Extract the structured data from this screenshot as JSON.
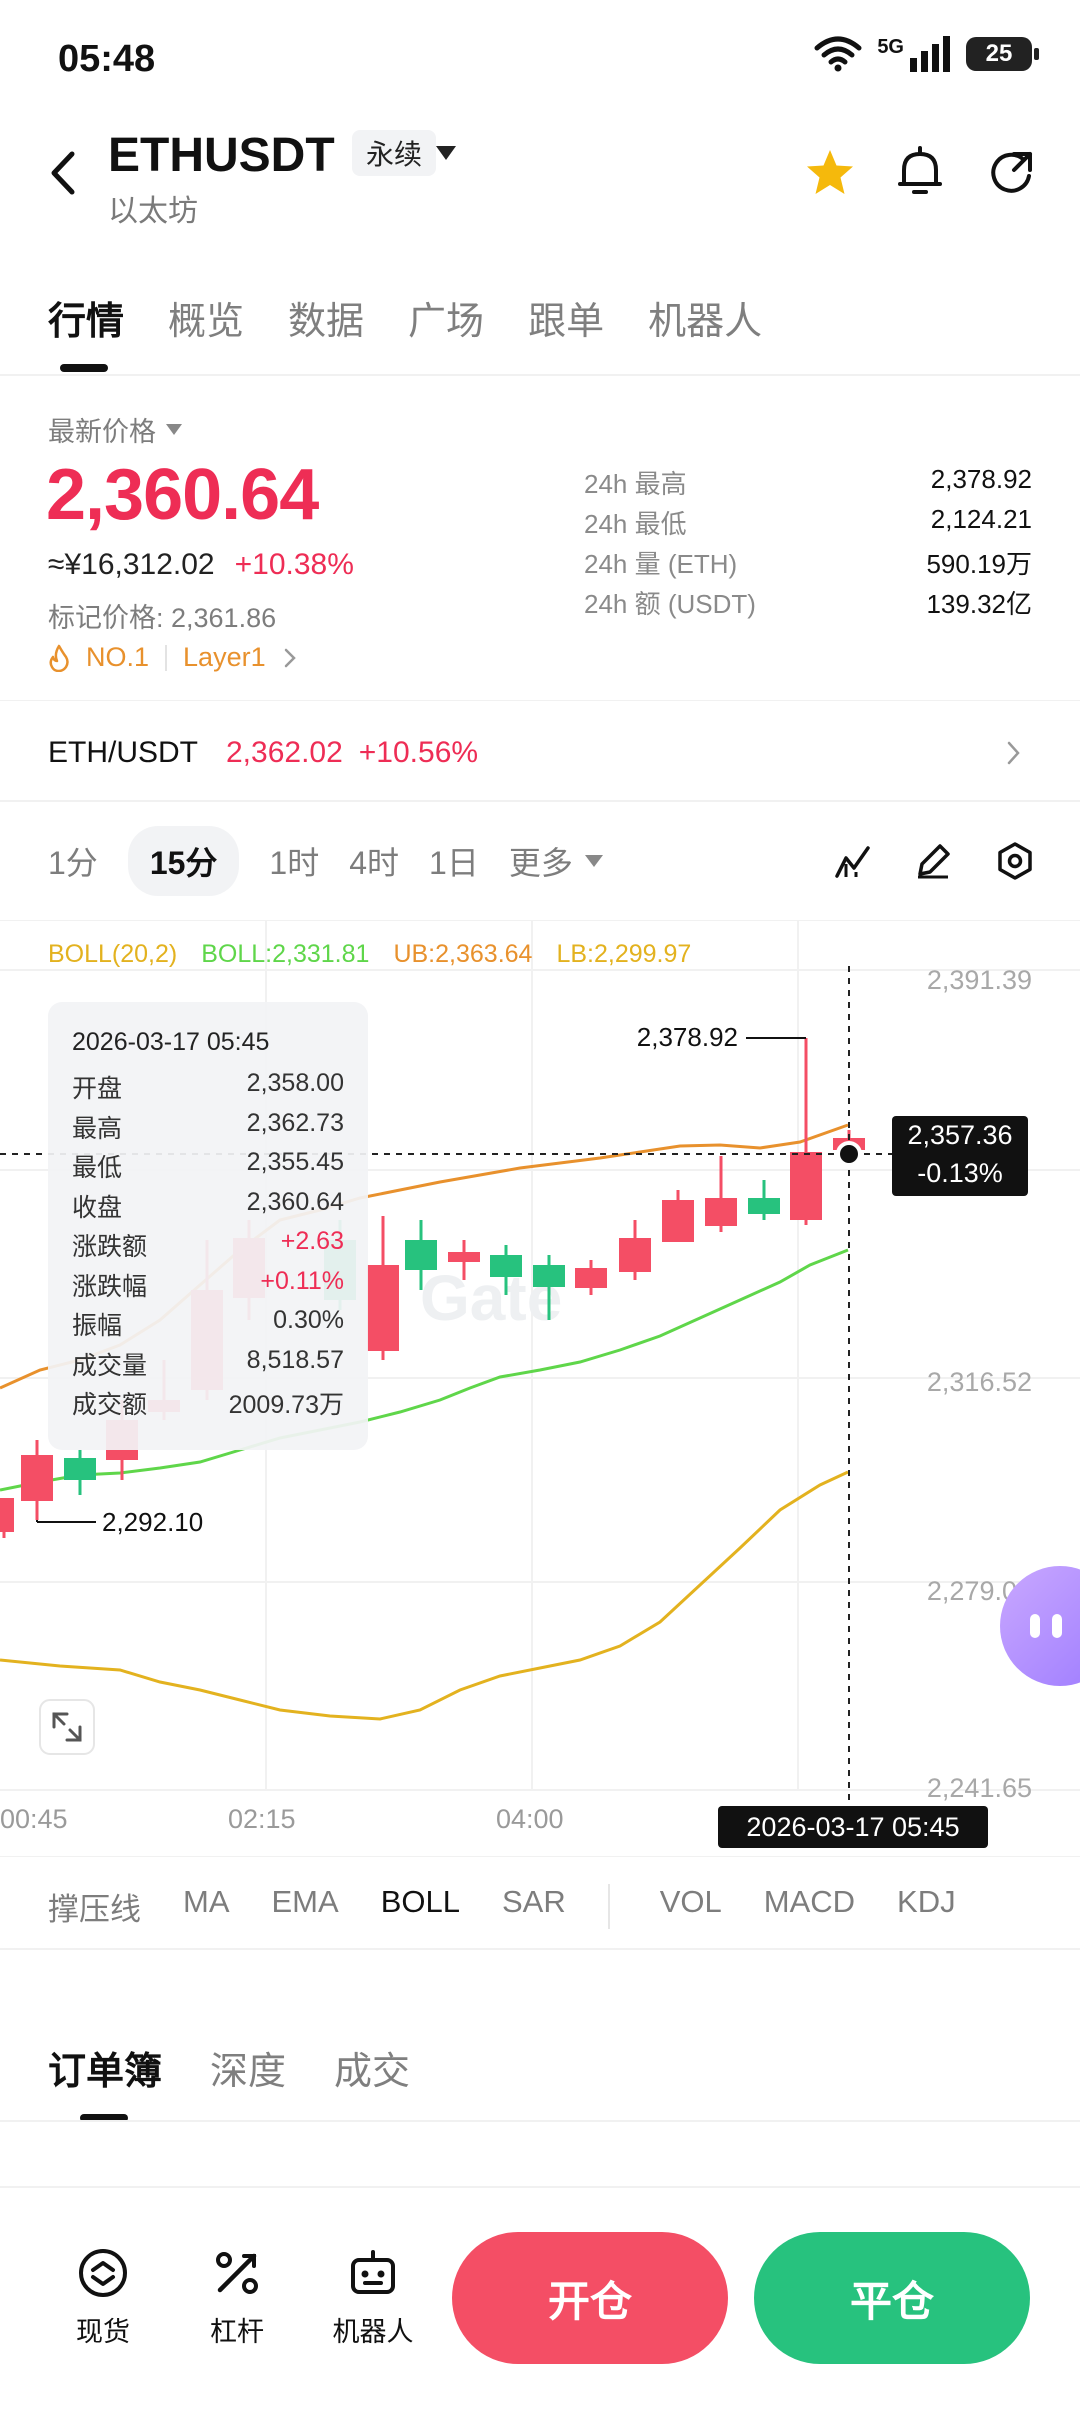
{
  "status_bar": {
    "time": "05:48",
    "network": "5G",
    "battery": "25"
  },
  "header": {
    "symbol": "ETHUSDT",
    "contract_type": "永续",
    "name": "以太坊"
  },
  "tabs": [
    "行情",
    "概览",
    "数据",
    "广场",
    "跟单",
    "机器人"
  ],
  "price": {
    "label": "最新价格",
    "last": "2,360.64",
    "cny": "≈¥16,312.02",
    "change_pct": "+10.38%",
    "mark_label": "标记价格: 2,361.86",
    "rank_tag": "NO.1",
    "sector_tag": "Layer1"
  },
  "stats": [
    {
      "k": "24h  最高",
      "v": "2,378.92"
    },
    {
      "k": "24h  最低",
      "v": "2,124.21"
    },
    {
      "k": "24h  量 (ETH)",
      "v": "590.19万"
    },
    {
      "k": "24h  额 (USDT)",
      "v": "139.32亿"
    }
  ],
  "pair": {
    "name": "ETH/USDT",
    "price": "2,362.02",
    "change": "+10.56%"
  },
  "timeframes": {
    "items": [
      "1分",
      "15分",
      "1时",
      "4时",
      "1日"
    ],
    "active": "15分",
    "more": "更多"
  },
  "boll": {
    "param": "BOLL(20,2)",
    "mid": "BOLL:2,331.81",
    "ub": "UB:2,363.64",
    "lb": "LB:2,299.97"
  },
  "chart_axis": {
    "y_labels": [
      "2,391.39",
      "2,316.52",
      "2,279.09",
      "2,241.65"
    ],
    "x_labels": [
      "00:45",
      "02:15",
      "04:00"
    ],
    "high_marker": "2,378.92",
    "low_marker": "2,292.10",
    "current_price": "2,357.36",
    "current_change": "-0.13%",
    "crosshair_time": "2026-03-17 05:45"
  },
  "colors": {
    "up": "#27c27e",
    "down": "#f44e65",
    "boll_mid": "#e8912d",
    "boll_ub": "#5fd64a",
    "boll_lb": "#e3b21f"
  },
  "tooltip": {
    "date": "2026-03-17 05:45",
    "rows": [
      {
        "k": "开盘",
        "v": "2,358.00"
      },
      {
        "k": "最高",
        "v": "2,362.73"
      },
      {
        "k": "最低",
        "v": "2,355.45"
      },
      {
        "k": "收盘",
        "v": "2,360.64"
      },
      {
        "k": "涨跌额",
        "v": "+2.63"
      },
      {
        "k": "涨跌幅",
        "v": "+0.11%"
      },
      {
        "k": "振幅",
        "v": "0.30%"
      },
      {
        "k": "成交量",
        "v": "8,518.57"
      },
      {
        "k": "成交额",
        "v": "2009.73万"
      }
    ]
  },
  "indicators": [
    "撑压线",
    "MA",
    "EMA",
    "BOLL",
    "SAR",
    "VOL",
    "MACD",
    "KDJ"
  ],
  "active_indicator": "BOLL",
  "orderbook_tabs": [
    "订单簿",
    "深度",
    "成交"
  ],
  "bottom_nav": [
    {
      "label": "现货",
      "icon": "spot-icon"
    },
    {
      "label": "杠杆",
      "icon": "leverage-icon"
    },
    {
      "label": "机器人",
      "icon": "robot-icon"
    }
  ],
  "actions": {
    "open": "开仓",
    "close": "平仓"
  }
}
